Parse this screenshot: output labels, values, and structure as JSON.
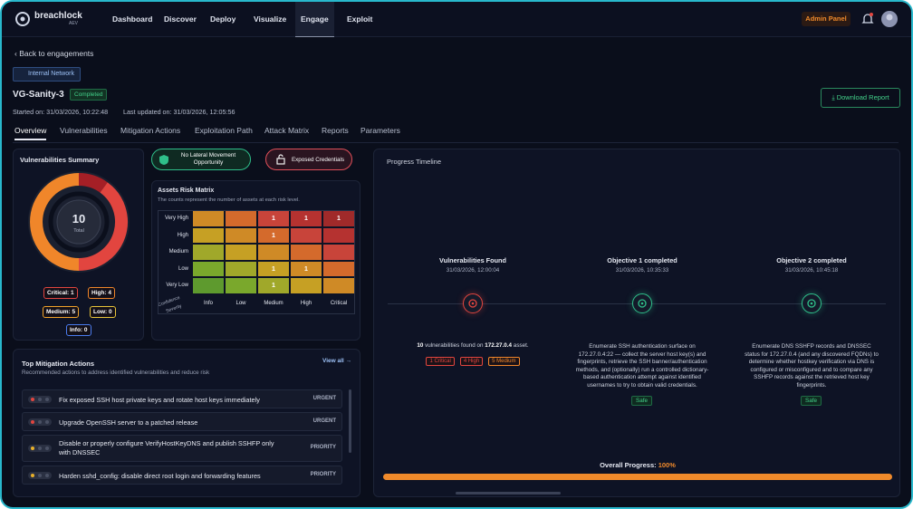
{
  "nav": {
    "brand": "breachlock",
    "brand_sub": "AEV",
    "items": [
      "Dashboard",
      "Discover",
      "Deploy",
      "Visualize",
      "Engage",
      "Exploit"
    ],
    "active": 4,
    "admin": "Admin Panel"
  },
  "header": {
    "back": "Back to engagements",
    "tag": "Internal Network",
    "title": "VG-Sanity-3",
    "status": "Completed",
    "started": "Started on: 31/03/2026, 10:22:48",
    "updated": "Last updated on: 31/03/2026, 12:05:56",
    "download": "Download Report"
  },
  "tabs": [
    "Overview",
    "Vulnerabilities",
    "Mitigation Actions",
    "Exploitation Path",
    "Attack Matrix",
    "Reports",
    "Parameters"
  ],
  "summary": {
    "title": "Vulnerabilities Summary",
    "total": 10,
    "total_label": "Total",
    "donut_values": [
      1,
      4,
      5,
      0,
      0
    ],
    "donut_colors": [
      "#a51f26",
      "#e2453f",
      "#f0862a",
      "#e8c43a",
      "#4a7cf0"
    ],
    "badges": [
      {
        "label": "Critical: 1",
        "color": "#e2453f"
      },
      {
        "label": "High: 4",
        "color": "#f0862a"
      },
      {
        "label": "Medium: 5",
        "color": "#f0a22a"
      },
      {
        "label": "Low: 0",
        "color": "#e8c43a"
      },
      {
        "label": "Info: 0",
        "color": "#4a7cf0"
      }
    ]
  },
  "pills": [
    {
      "label": "No Lateral Movement Opportunity",
      "color": "#2fbf8a"
    },
    {
      "label": "Exposed Credentials",
      "color": "#e0505a"
    }
  ],
  "matrix": {
    "title": "Assets Risk Matrix",
    "subtitle": "The counts represent the number of assets at each risk level.",
    "rows": [
      "Very High",
      "High",
      "Medium",
      "Low",
      "Very Low"
    ],
    "cols": [
      "Info",
      "Low",
      "Medium",
      "High",
      "Critical"
    ],
    "corner_top": "Confidence",
    "corner_bottom": "Severity",
    "cells": [
      [
        null,
        null,
        1,
        1,
        1
      ],
      [
        null,
        null,
        1,
        null,
        null
      ],
      [
        null,
        null,
        null,
        null,
        null
      ],
      [
        null,
        null,
        1,
        1,
        null
      ],
      [
        null,
        null,
        1,
        null,
        null
      ]
    ]
  },
  "mitigation": {
    "title": "Top Mitigation Actions",
    "subtitle": "Recommended actions to address identified vulnerabilities and reduce risk",
    "view_all": "View all",
    "items": [
      {
        "text": "Fix exposed SSH host private keys and rotate host keys immediately",
        "tag": "URGENT",
        "color": "#e2453f"
      },
      {
        "text": "Upgrade OpenSSH server to a patched release",
        "tag": "URGENT",
        "color": "#e2453f"
      },
      {
        "text": "Disable or properly configure VerifyHostKeyDNS and publish SSHFP only with DNSSEC",
        "tag": "PRIORITY",
        "color": "#e8b02a"
      },
      {
        "text": "Harden sshd_config: disable direct root login and forwarding features",
        "tag": "PRIORITY",
        "color": "#e8b02a"
      }
    ]
  },
  "timeline": {
    "title": "Progress Timeline",
    "events": [
      {
        "title": "Vulnerabilities Found",
        "date": "31/03/2026, 12:00:04",
        "color": "#e2453f",
        "description": [
          "10",
          " vulnerabilities found on ",
          "172.27.0.4",
          " asset."
        ],
        "chips": [
          {
            "label": "1 Critical",
            "color": "#e2453f"
          },
          {
            "label": "4 High",
            "color": "#e2453f"
          },
          {
            "label": "5 Medium",
            "color": "#f0862a"
          }
        ]
      },
      {
        "title": "Objective 1 completed",
        "date": "31/03/2026, 10:35:33",
        "color": "#2fbf8a",
        "description": [
          "Enumerate SSH authentication surface on 172.27.0.4:22 — collect the server host key(s) and fingerprints, retrieve the SSH banner/authentication methods, and (optionally) run a controlled dictionary-based authentication attempt against identified usernames to try to obtain valid credentials."
        ],
        "status": "Safe"
      },
      {
        "title": "Objective 2 completed",
        "date": "31/03/2026, 10:45:18",
        "color": "#2fbf8a",
        "description": [
          "Enumerate DNS SSHFP records and DNSSEC status for 172.27.0.4 (and any discovered FQDNs) to determine whether hostkey verification via DNS is configured or misconfigured and to compare any SSHFP records against the retrieved host key fingerprints."
        ],
        "status": "Safe"
      }
    ],
    "progress": {
      "label": "Overall Progress:",
      "value": 100,
      "value_label": "100%"
    }
  }
}
